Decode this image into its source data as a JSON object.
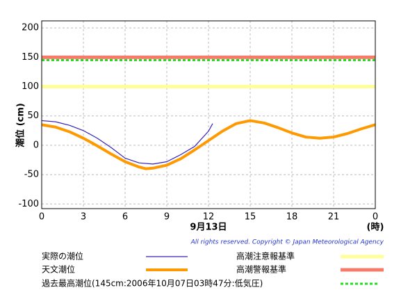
{
  "chart_data": {
    "type": "line",
    "ylabel": "潮位 (cm)",
    "xlabel": "9月13日",
    "xunit": "(時)",
    "xlim": [
      0,
      24
    ],
    "xticks": [
      0,
      3,
      6,
      9,
      12,
      15,
      18,
      21,
      {
        "value": 24,
        "label": "0"
      }
    ],
    "ylim": [
      -108,
      212
    ],
    "yticks": [
      -100,
      -50,
      0,
      50,
      100,
      150,
      200
    ],
    "grid": true,
    "series": [
      {
        "name": "実際の潮位",
        "color": "#3322bb",
        "x": [
          0,
          1,
          2,
          3,
          4,
          5,
          6,
          7,
          8,
          9,
          10,
          11,
          12,
          12.3
        ],
        "values": [
          42,
          40,
          34,
          25,
          12,
          -4,
          -22,
          -30,
          -32,
          -28,
          -16,
          -2,
          24,
          37
        ]
      },
      {
        "name": "天文潮位",
        "color": "#ff9900",
        "x": [
          0,
          1,
          2,
          3,
          4,
          5,
          6,
          7,
          7.5,
          8,
          9,
          10,
          11,
          12,
          13,
          14,
          15,
          16,
          17,
          18,
          19,
          20,
          21,
          22,
          23,
          24
        ],
        "values": [
          35,
          31,
          23,
          12,
          -1,
          -15,
          -28,
          -37,
          -40,
          -39,
          -34,
          -23,
          -8,
          8,
          24,
          37,
          42,
          38,
          30,
          21,
          14,
          12,
          14,
          20,
          28,
          35
        ]
      }
    ],
    "reference_lines": [
      {
        "name": "高潮注意報基準",
        "value": 100,
        "color": "#ffff99",
        "dashed": false
      },
      {
        "name": "高潮警報基準",
        "value": 150,
        "color": "#f87b6a",
        "dashed": false
      },
      {
        "name": "過去最高潮位(145cm:2006年10月07日03時47分:低気圧)",
        "value": 145,
        "color": "#22dd22",
        "dashed": true
      }
    ],
    "copyright": "All rights reserved. Copyright © Japan Meteorological Agency"
  }
}
